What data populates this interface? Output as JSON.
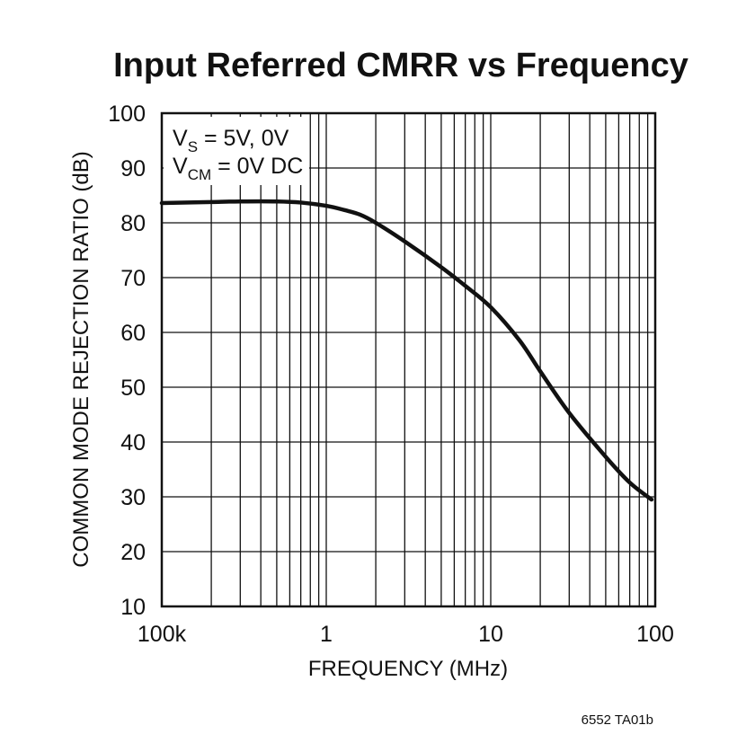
{
  "chart_data": {
    "type": "line",
    "title": "Input Referred CMRR vs Frequency",
    "xlabel": "FREQUENCY (MHz)",
    "ylabel": "COMMON MODE REJECTION RATIO (dB)",
    "xscale": "log",
    "xlim": [
      0.1,
      100
    ],
    "ylim": [
      10,
      100
    ],
    "xticks": [
      {
        "value": 0.1,
        "label": "100k"
      },
      {
        "value": 1,
        "label": "1"
      },
      {
        "value": 10,
        "label": "10"
      },
      {
        "value": 100,
        "label": "100"
      }
    ],
    "yticks": [
      {
        "value": 100,
        "label": "100"
      },
      {
        "value": 90,
        "label": "90"
      },
      {
        "value": 80,
        "label": "80"
      },
      {
        "value": 70,
        "label": "70"
      },
      {
        "value": 60,
        "label": "60"
      },
      {
        "value": 50,
        "label": "50"
      },
      {
        "value": 40,
        "label": "40"
      },
      {
        "value": 30,
        "label": "30"
      },
      {
        "value": 20,
        "label": "20"
      },
      {
        "value": 10,
        "label": "10"
      }
    ],
    "grid": true,
    "annotation": {
      "line1_main": "V",
      "line1_sub": "S",
      "line1_rest": " = 5V, 0V",
      "line2_main": "V",
      "line2_sub": "CM",
      "line2_rest": " = 0V DC"
    },
    "series": [
      {
        "name": "CMRR",
        "x": [
          0.1,
          0.2,
          0.3,
          0.5,
          0.7,
          1.0,
          1.3,
          1.6,
          2.0,
          3.0,
          5.0,
          7.0,
          10,
          15,
          20,
          30,
          50,
          70,
          95
        ],
        "y": [
          83.6,
          83.8,
          83.9,
          83.9,
          83.7,
          83.1,
          82.3,
          81.5,
          80.0,
          76.6,
          71.9,
          68.5,
          64.6,
          58.5,
          52.9,
          45.3,
          37.3,
          32.6,
          29.5
        ]
      }
    ]
  },
  "footer": {
    "code": "6552 TA01b"
  }
}
